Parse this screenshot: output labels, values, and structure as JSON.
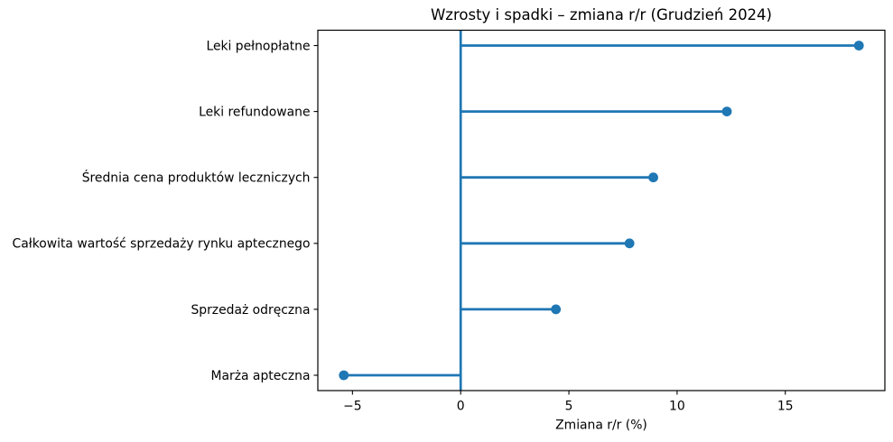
{
  "figure": {
    "background": "#ffffff"
  },
  "chart_data": {
    "type": "bar",
    "variant": "lollipop",
    "orientation": "horizontal",
    "title": "Wzrosty i spadki – zmiana r/r (Grudzień 2024)",
    "xlabel": "Zmiana r/r (%)",
    "ylabel": "",
    "categories": [
      "Leki pełnopłatne",
      "Leki refundowane",
      "Średnia cena produktów leczniczych",
      "Całkowita wartość sprzedaży rynku aptecznego",
      "Sprzedaż odręczna",
      "Marża apteczna"
    ],
    "values": [
      18.4,
      12.3,
      8.9,
      7.8,
      4.4,
      -5.4
    ],
    "xlim": [
      -6.6,
      19.6
    ],
    "xticks": [
      -5,
      0,
      5,
      10,
      15
    ],
    "xtick_labels": [
      "−5",
      "0",
      "5",
      "10",
      "15"
    ],
    "zero_line_x": 0,
    "grid": false,
    "legend": "none",
    "marker_color": "#1f77b4",
    "line_color": "#1f77b4",
    "axis_color": "#000000",
    "text_color": "#000000"
  }
}
